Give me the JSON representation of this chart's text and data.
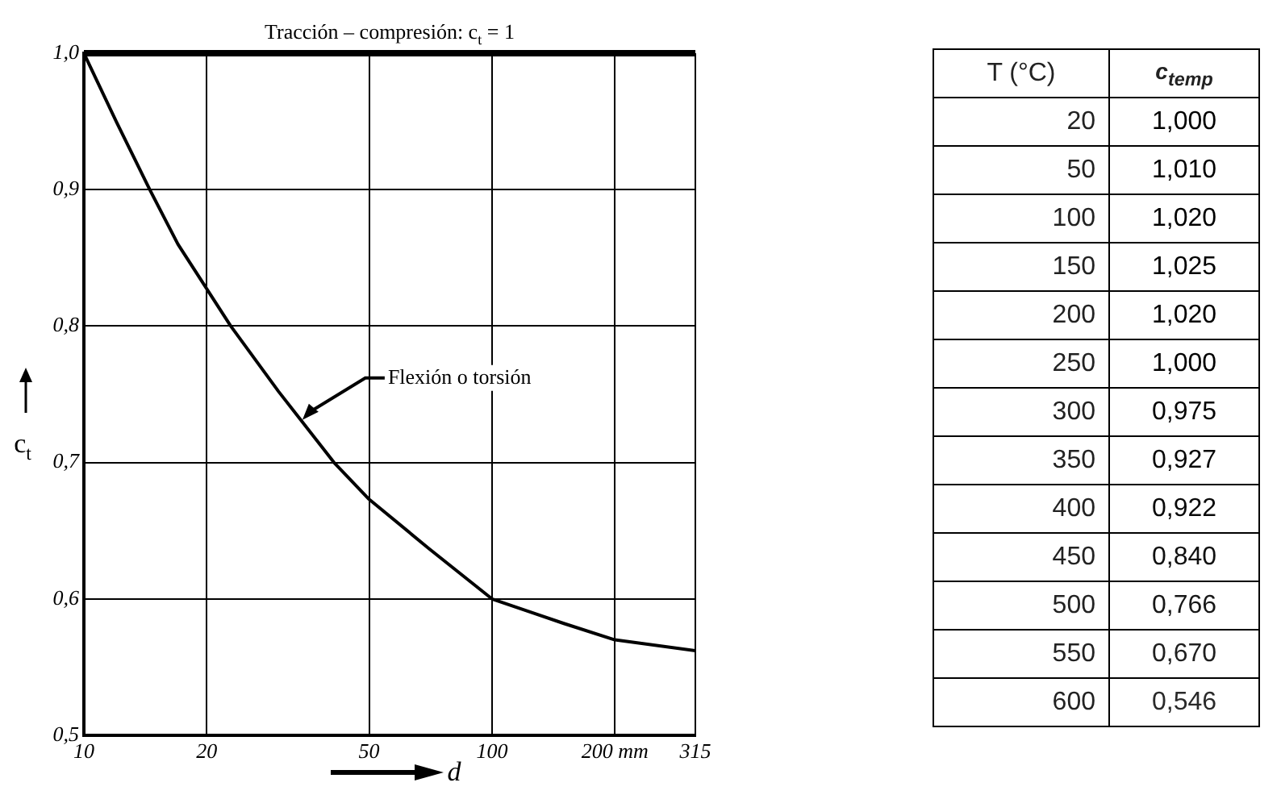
{
  "chart_data": [
    {
      "type": "line",
      "xlabel": "d",
      "ylabel": "c$_{t}$",
      "log": "x",
      "grid": true,
      "legend": false,
      "marker": "none",
      "line_style": "solid",
      "x": [
        10,
        12,
        14.5,
        17,
        22.9,
        30,
        41,
        50,
        70,
        100,
        150,
        200,
        315
      ],
      "series": [
        {
          "color": "#000000",
          "values": [
            1.0,
            0.95,
            0.9,
            0.86,
            0.8,
            0.752,
            0.7,
            0.673,
            0.637,
            0.6,
            0.582,
            0.57,
            0.562
          ]
        }
      ],
      "xlim": [
        10,
        315
      ],
      "xticks": [
        10,
        20,
        50,
        100,
        {
          "value": 200,
          "label": "200 mm"
        },
        315
      ],
      "ylim": [
        0.5,
        1.0
      ],
      "yticks": [
        {
          "value": 0.5,
          "label": "0,5"
        },
        {
          "value": 0.6,
          "label": "0,6"
        },
        {
          "value": 0.7,
          "label": "0,7"
        },
        {
          "value": 0.8,
          "label": "0,8"
        },
        {
          "value": 0.9,
          "label": "0,9"
        },
        {
          "value": 1.0,
          "label": "1,0"
        }
      ],
      "ref_lines": [
        {
          "axis": "y",
          "value": 1.0,
          "label": "Tracción – compresión: c$_{t}$ = 1",
          "color": "#000000"
        }
      ],
      "annotations": [
        {
          "text": "Flexión o torsión",
          "x": 34,
          "y": 0.73
        }
      ]
    },
    {
      "type": "heatmap",
      "ylabel": "T (°C)",
      "categories": [
        "c$_{temp}$"
      ],
      "y_categories": [
        "20",
        "50",
        "100",
        "150",
        "200",
        "250",
        "300",
        "350",
        "400",
        "450",
        "500",
        "550",
        "600"
      ],
      "cells": [
        [
          1.0
        ],
        [
          1.01
        ],
        [
          1.02
        ],
        [
          1.025
        ],
        [
          1.02
        ],
        [
          1.0
        ],
        [
          0.975
        ],
        [
          0.927
        ],
        [
          0.922
        ],
        [
          0.84
        ],
        [
          0.766
        ],
        [
          0.67
        ],
        [
          0.546
        ]
      ],
      "cell_labels": [
        [
          "1,000"
        ],
        [
          "1,010"
        ],
        [
          "1,020"
        ],
        [
          "1,025"
        ],
        [
          "1,020"
        ],
        [
          "1,000"
        ],
        [
          "0,975"
        ],
        [
          "0,927"
        ],
        [
          "0,922"
        ],
        [
          "0,840"
        ],
        [
          "0,766"
        ],
        [
          "0,670"
        ],
        [
          "0,546"
        ]
      ]
    }
  ]
}
